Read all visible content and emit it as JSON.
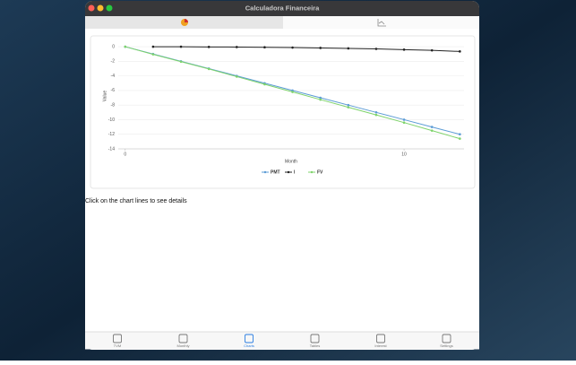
{
  "window": {
    "title": "Calculadora Financeira"
  },
  "hint": "Click on the chart lines to see details",
  "tabs": [
    {
      "label": "TVM"
    },
    {
      "label": "Monthly"
    },
    {
      "label": "Charts"
    },
    {
      "label": "Tables"
    },
    {
      "label": "Interest"
    },
    {
      "label": "Settings"
    }
  ],
  "chart_data": {
    "type": "line",
    "x_label": "Month",
    "y_label": "Value",
    "x": [
      0,
      1,
      2,
      3,
      4,
      5,
      6,
      7,
      8,
      9,
      10,
      11,
      12
    ],
    "series": [
      {
        "name": "PMT",
        "color": "#5b9bd5",
        "values": [
          0,
          -1,
          -2,
          -3,
          -4,
          -5,
          -6,
          -7,
          -8,
          -9,
          -10,
          -11,
          -12
        ]
      },
      {
        "name": "I",
        "color": "#222222",
        "values": [
          null,
          0,
          0,
          -0.03,
          -0.05,
          -0.08,
          -0.12,
          -0.17,
          -0.23,
          -0.3,
          -0.4,
          -0.5,
          -0.65
        ]
      },
      {
        "name": "FV",
        "color": "#7ed36b",
        "values": [
          0,
          -1.05,
          -2.05,
          -3.05,
          -4.1,
          -5.15,
          -6.2,
          -7.25,
          -8.3,
          -9.35,
          -10.4,
          -11.5,
          -12.6
        ]
      }
    ],
    "xlim": [
      -0.25,
      12.15
    ],
    "ylim": [
      -14,
      0.5
    ],
    "xticks": [
      0,
      10
    ],
    "yticks": [
      0,
      -2,
      -4,
      -6,
      -8,
      -10,
      -12,
      -14
    ],
    "grid": true,
    "legend": "bottom"
  }
}
